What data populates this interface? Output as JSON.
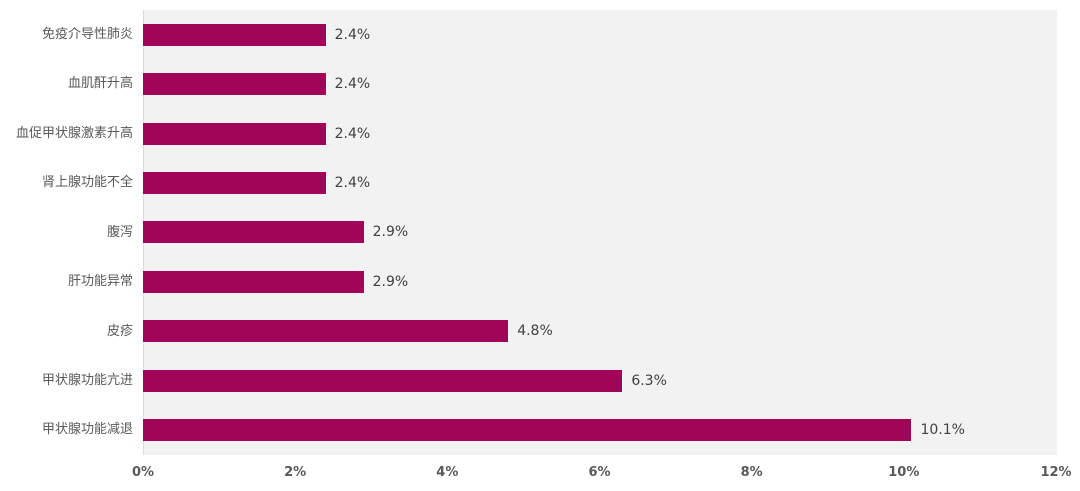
{
  "chart_data": {
    "type": "bar",
    "orientation": "horizontal",
    "title": "",
    "xlabel": "",
    "ylabel": "",
    "categories": [
      "免疫介导性肺炎",
      "血肌酐升高",
      "血促甲状腺激素升高",
      "肾上腺功能不全",
      "腹泻",
      "肝功能异常",
      "皮疹",
      "甲状腺功能亢进",
      "甲状腺功能减退"
    ],
    "values": [
      2.4,
      2.4,
      2.4,
      2.4,
      2.9,
      2.9,
      4.8,
      6.3,
      10.1
    ],
    "value_labels": [
      "2.4%",
      "2.4%",
      "2.4%",
      "2.4%",
      "2.9%",
      "2.9%",
      "4.8%",
      "6.3%",
      "10.1%"
    ],
    "x_ticks": [
      "0%",
      "2%",
      "4%",
      "6%",
      "8%",
      "10%",
      "12%"
    ],
    "xlim": [
      0,
      12
    ],
    "grid": false,
    "legend": false,
    "bar_color": "#a00557",
    "plot_background": "#f2f2f2",
    "label_color": "#595959",
    "value_label_color": "#404040"
  }
}
